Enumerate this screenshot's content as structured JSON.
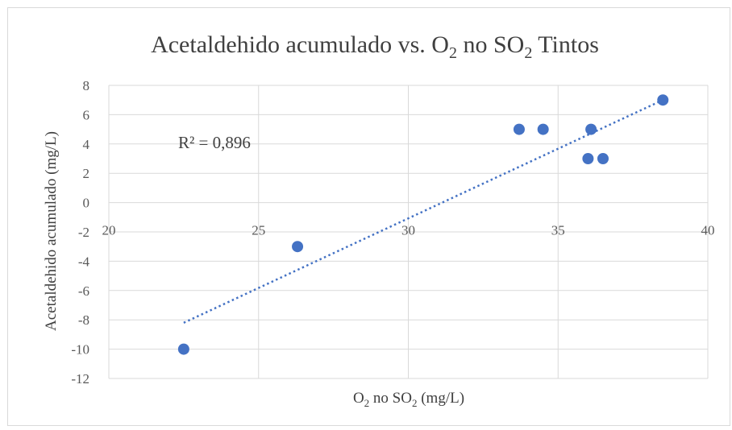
{
  "chart_data": {
    "type": "scatter",
    "title": "Acetaldehido acumulado vs. O2 no SO2 Tintos",
    "xlabel": "O2 no SO2 (mg/L)",
    "ylabel": "Acetaldehido acumulado (mg/L)",
    "xlim": [
      20,
      40
    ],
    "ylim": [
      -12,
      8
    ],
    "x_ticks": [
      "20",
      "25",
      "30",
      "35",
      "40"
    ],
    "y_ticks": [
      "8",
      "6",
      "4",
      "2",
      "0",
      "-2",
      "-4",
      "-6",
      "-8",
      "-10",
      "-12"
    ],
    "grid": true,
    "legend": "none",
    "series": [
      {
        "x": [
          22.5,
          26.3,
          33.7,
          34.5,
          36.0,
          36.1,
          36.5,
          38.5
        ],
        "y": [
          -10,
          -3,
          5,
          5,
          3,
          5,
          3,
          7
        ]
      }
    ],
    "trendline": {
      "type": "linear",
      "x_range": [
        22.5,
        38.5
      ],
      "y_range": [
        -8.2,
        7.0
      ],
      "style": "dotted"
    },
    "annotation": "R² = 0,896",
    "colors": {
      "points": "#4472c4",
      "trendline": "#4472c4",
      "grid": "#d9d9d9",
      "text": "#595959"
    }
  }
}
